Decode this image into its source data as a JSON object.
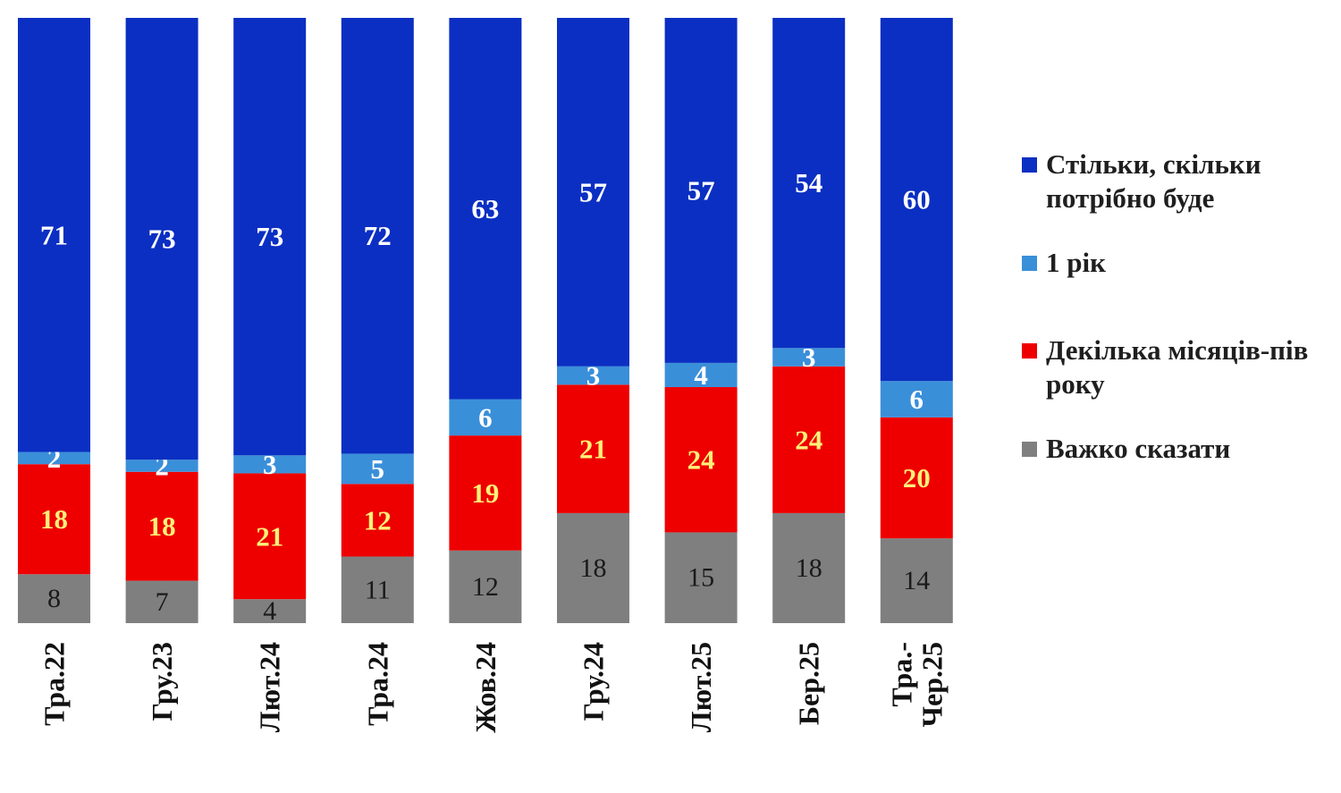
{
  "chart_data": {
    "type": "bar",
    "stacked": true,
    "percent_stacked": true,
    "categories": [
      "Тра.22",
      "Гру.23",
      "Лют.24",
      "Тра.24",
      "Жов.24",
      "Гру.24",
      "Лют.25",
      "Бер.25",
      "Тра.-\nЧер.25"
    ],
    "series": [
      {
        "name": "Важко сказати",
        "color": "#7f7f7f",
        "label_color": "#1a1a1a",
        "values": [
          8,
          7,
          4,
          11,
          12,
          18,
          15,
          18,
          14
        ]
      },
      {
        "name": "Декілька місяців-пів року",
        "color": "#ee0000",
        "label_color": "#fff07a",
        "values": [
          18,
          18,
          21,
          12,
          19,
          21,
          24,
          24,
          20
        ]
      },
      {
        "name": "1 рік",
        "color": "#3a8fd9",
        "label_color": "#ffffff",
        "values": [
          2,
          2,
          3,
          5,
          6,
          3,
          4,
          3,
          6
        ]
      },
      {
        "name": "Стільки, скільки потрібно буде",
        "color": "#0b2fc2",
        "label_color": "#ffffff",
        "values": [
          71,
          73,
          73,
          72,
          63,
          57,
          57,
          54,
          60
        ]
      }
    ],
    "legend_position": "right",
    "grid": false
  },
  "legend": {
    "items": [
      {
        "label": "Стільки, скільки потрібно буде",
        "color": "#0b2fc2"
      },
      {
        "label": "1 рік",
        "color": "#3a8fd9"
      },
      {
        "label": "Декілька місяців-пів року",
        "color": "#ee0000"
      },
      {
        "label": "Важко сказати",
        "color": "#7f7f7f"
      }
    ]
  }
}
